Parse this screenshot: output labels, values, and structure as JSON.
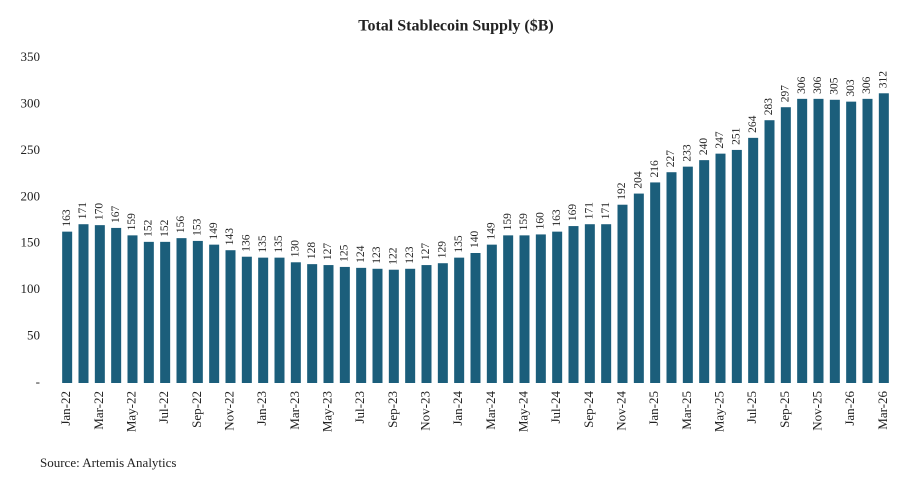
{
  "chart_data": {
    "type": "bar",
    "title": "Total Stablecoin Supply ($B)",
    "source": "Source: Artemis Analytics",
    "categories": [
      "Jan-22",
      null,
      "Mar-22",
      null,
      "May-22",
      null,
      "Jul-22",
      null,
      "Sep-22",
      null,
      "Nov-22",
      null,
      "Jan-23",
      null,
      "Mar-23",
      null,
      "May-23",
      null,
      "Jul-23",
      null,
      "Sep-23",
      null,
      "Nov-23",
      null,
      "Jan-24",
      null,
      "Mar-24",
      null,
      "May-24",
      null,
      "Jul-24",
      null,
      "Sep-24",
      null,
      "Nov-24",
      null,
      "Jan-25",
      null,
      "Mar-25",
      null,
      "May-25",
      null,
      "Jul-25",
      null,
      "Sep-25",
      null,
      "Nov-25",
      null,
      "Jan-26",
      null,
      "Mar-26"
    ],
    "values": [
      163,
      171,
      170,
      167,
      159,
      152,
      152,
      156,
      153,
      149,
      143,
      136,
      135,
      135,
      130,
      128,
      127,
      125,
      124,
      123,
      122,
      123,
      127,
      129,
      135,
      140,
      149,
      159,
      159,
      160,
      163,
      169,
      171,
      171,
      192,
      204,
      216,
      227,
      233,
      240,
      247,
      251,
      264,
      283,
      297,
      306,
      306,
      305,
      303,
      306,
      312
    ],
    "color": "#1b5e7b",
    "ylim": [
      0,
      350
    ],
    "yticks": [
      {
        "value": 0,
        "label": "-"
      },
      50,
      100,
      150,
      200,
      250,
      300,
      350
    ],
    "grid": false
  }
}
